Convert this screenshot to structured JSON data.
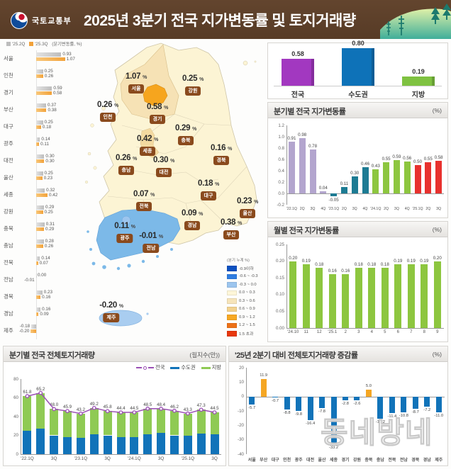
{
  "header": {
    "agency": "국토교통부",
    "title": "2025년 3분기 전국 지가변동률 및 토지거래량"
  },
  "watermark": "동네방네",
  "sidebar": {
    "legend": {
      "q2": "'25.2Q",
      "q3": "'25.3Q",
      "unit": "(분기변동률, %)"
    },
    "regions": [
      {
        "name": "서울",
        "q2": 0.93,
        "q3": 1.07
      },
      {
        "name": "인천",
        "q2": 0.25,
        "q3": 0.26
      },
      {
        "name": "경기",
        "q2": 0.59,
        "q3": 0.58
      },
      {
        "name": "부산",
        "q2": 0.37,
        "q3": 0.38
      },
      {
        "name": "대구",
        "q2": 0.25,
        "q3": 0.18
      },
      {
        "name": "광주",
        "q2": 0.14,
        "q3": 0.11
      },
      {
        "name": "대전",
        "q2": 0.3,
        "q3": 0.3
      },
      {
        "name": "울산",
        "q2": 0.25,
        "q3": 0.23
      },
      {
        "name": "세종",
        "q2": 0.32,
        "q3": 0.42
      },
      {
        "name": "강원",
        "q2": 0.29,
        "q3": 0.25
      },
      {
        "name": "충북",
        "q2": 0.31,
        "q3": 0.29
      },
      {
        "name": "충남",
        "q2": 0.28,
        "q3": 0.26
      },
      {
        "name": "전북",
        "q2": 0.14,
        "q3": 0.07
      },
      {
        "name": "전남",
        "q2": 0.0,
        "q3": -0.01
      },
      {
        "name": "경북",
        "q2": 0.23,
        "q3": 0.16
      },
      {
        "name": "경남",
        "q2": 0.16,
        "q3": 0.09
      },
      {
        "name": "제주",
        "q2": -0.18,
        "q3": -0.2
      }
    ]
  },
  "map": {
    "labels": [
      {
        "name": "서울",
        "value": "1.07"
      },
      {
        "name": "강원",
        "value": "0.25"
      },
      {
        "name": "인천",
        "value": "0.26"
      },
      {
        "name": "경기",
        "value": "0.58"
      },
      {
        "name": "충북",
        "value": "0.29"
      },
      {
        "name": "세종",
        "value": "0.42"
      },
      {
        "name": "경북",
        "value": "0.16"
      },
      {
        "name": "충남",
        "value": "0.26"
      },
      {
        "name": "대전",
        "value": "0.30"
      },
      {
        "name": "대구",
        "value": "0.18"
      },
      {
        "name": "전북",
        "value": "0.07"
      },
      {
        "name": "울산",
        "value": "0.23"
      },
      {
        "name": "경남",
        "value": "0.09"
      },
      {
        "name": "광주",
        "value": "0.11"
      },
      {
        "name": "부산",
        "value": "0.38"
      },
      {
        "name": "전남",
        "value": "-0.01"
      },
      {
        "name": "제주",
        "value": "-0.20"
      }
    ],
    "legend_title": "(분기 누계 %)",
    "legend": [
      {
        "label": "-0.9이하",
        "color": "#0b50c0"
      },
      {
        "label": "-0.6 ~ -0.3",
        "color": "#2f7de1"
      },
      {
        "label": "-0.3 ~ 0.0",
        "color": "#9cc5ee"
      },
      {
        "label": "0.0 ~ 0.3",
        "color": "#fdf6d8"
      },
      {
        "label": "0.3 ~ 0.6",
        "color": "#f6e4ba"
      },
      {
        "label": "0.6 ~ 0.9",
        "color": "#f2d28f"
      },
      {
        "label": "0.9 ~ 1.2",
        "color": "#f7a823"
      },
      {
        "label": "1.2 ~ 1.5",
        "color": "#ed7117"
      },
      {
        "label": "1.5 초과",
        "color": "#e8380d"
      }
    ]
  },
  "chart_data": [
    {
      "type": "bar",
      "title": "",
      "categories": [
        "전국",
        "수도권",
        "지방"
      ],
      "values": [
        0.58,
        0.8,
        0.19
      ],
      "colors": [
        "#a238c0",
        "#0e72b8",
        "#7fc241"
      ],
      "ylim": [
        0,
        1.0
      ]
    },
    {
      "type": "bar",
      "title": "분기별 전국 지가변동률",
      "unit": "(%)",
      "categories": [
        "'22.1Q",
        "2Q",
        "3Q",
        "4Q",
        "'23.1Q",
        "2Q",
        "3Q",
        "4Q",
        "'24.1Q",
        "2Q",
        "3Q",
        "4Q",
        "'25.1Q",
        "2Q",
        "3Q"
      ],
      "values": [
        0.91,
        0.98,
        0.78,
        0.04,
        -0.05,
        0.11,
        0.3,
        0.46,
        0.43,
        0.55,
        0.59,
        0.56,
        0.5,
        0.55,
        0.58
      ],
      "bar_colors": [
        "#b3a5ce",
        "#b3a5ce",
        "#b3a5ce",
        "#b3a5ce",
        "#1d7b93",
        "#1d7b93",
        "#1d7b93",
        "#1d7b93",
        "#8dc63f",
        "#8dc63f",
        "#8dc63f",
        "#8dc63f",
        "#e8312e",
        "#e8312e",
        "#e8312e"
      ],
      "ylim": [
        -0.2,
        1.2
      ],
      "yticks": [
        1.2,
        1.0,
        0.8,
        0.6,
        0.4,
        0.2,
        0.0,
        -0.2
      ]
    },
    {
      "type": "bar",
      "title": "월별 전국 지가변동률",
      "unit": "(%)",
      "categories": [
        "'24.10",
        "11",
        "12",
        "'25.1",
        "2",
        "3",
        "4",
        "5",
        "6",
        "7",
        "8",
        "9"
      ],
      "values": [
        0.2,
        0.19,
        0.18,
        0.16,
        0.16,
        0.18,
        0.18,
        0.18,
        0.19,
        0.19,
        0.19,
        0.2
      ],
      "color": "#8dc63f",
      "ylim": [
        0,
        0.25
      ],
      "yticks": [
        0.25,
        0.2,
        0.15,
        0.1,
        0.05,
        0.0
      ]
    },
    {
      "type": "bar+line",
      "title": "분기별 전국 전체토지거래량",
      "unit": "(필지수(만))",
      "categories": [
        "'22.1Q",
        "2Q",
        "3Q",
        "4Q",
        "'23.1Q",
        "2Q",
        "3Q",
        "4Q",
        "'24.1Q",
        "2Q",
        "3Q",
        "4Q",
        "'25.1Q",
        "2Q",
        "3Q"
      ],
      "series": [
        {
          "name": "전국",
          "type": "line",
          "color": "#9b50b5",
          "values": [
            61.8,
            65.2,
            48.0,
            45.9,
            43.2,
            49.2,
            45.8,
            44.4,
            44.5,
            48.5,
            48.4,
            46.2,
            43.3,
            47.3,
            44.5
          ]
        },
        {
          "name": "수도권",
          "type": "bar",
          "color": "#1173b9",
          "values": [
            25.0,
            27.5,
            20.0,
            18.0,
            17.0,
            21.0,
            20.0,
            18.0,
            18.0,
            21.5,
            23.0,
            20.0,
            19.5,
            22.0,
            21.0
          ]
        },
        {
          "name": "지방",
          "type": "bar",
          "color": "#8fca54",
          "values": [
            36.8,
            37.7,
            28.0,
            27.9,
            26.2,
            28.2,
            25.8,
            26.4,
            26.5,
            27.0,
            25.4,
            26.2,
            23.8,
            25.3,
            23.5
          ]
        }
      ],
      "ylim": [
        0,
        80
      ],
      "yticks": [
        80,
        60,
        40,
        20,
        0
      ]
    },
    {
      "type": "bar",
      "title": "'25년 2분기 대비 전체토지거래량 증감률",
      "unit": "(%)",
      "categories": [
        "서울",
        "부산",
        "대구",
        "인천",
        "광주",
        "대전",
        "울산",
        "세종",
        "경기",
        "강원",
        "충북",
        "충남",
        "전북",
        "전남",
        "경북",
        "경남",
        "제주"
      ],
      "values": [
        -5.7,
        11.9,
        -0.7,
        -8.8,
        -9.8,
        -16.4,
        -7.8,
        -33.2,
        -2.8,
        -2.6,
        5.0,
        -15.2,
        -11.4,
        -10.8,
        -8.7,
        -7.2,
        -11.0
      ],
      "color_positive": "#f5a623",
      "color_negative": "#1173b9",
      "ylim": [
        -40,
        20
      ],
      "yticks": [
        20,
        10,
        0,
        -10,
        -20,
        -30,
        -40
      ]
    }
  ]
}
